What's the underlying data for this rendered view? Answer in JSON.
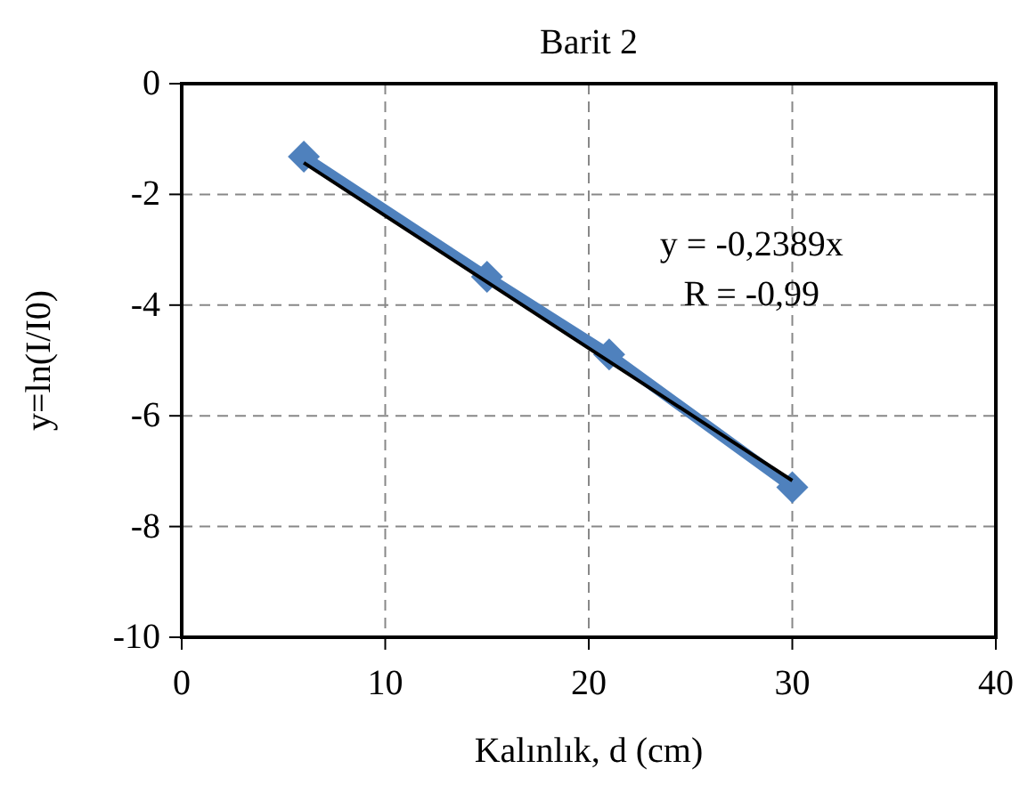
{
  "chart_data": {
    "type": "line",
    "title": "Barit 2",
    "xlabel": "Kalınlık, d (cm)",
    "ylabel": "y=ln(I/I0)",
    "xlim": [
      0,
      40
    ],
    "xticks": [
      0,
      10,
      20,
      30,
      40
    ],
    "ylim": [
      -10,
      0
    ],
    "yticks": [
      0,
      -2,
      -4,
      -6,
      -8,
      -10
    ],
    "grid": true,
    "marker": "diamond",
    "line_style": "solid",
    "series": [
      {
        "color": "#4f81bd",
        "x": [
          6,
          15,
          21,
          30
        ],
        "values": [
          -1.32,
          -3.49,
          -4.89,
          -7.29
        ]
      },
      {
        "color": "#000000",
        "marker": "none",
        "x": [
          6,
          30
        ],
        "values": [
          -1.43,
          -7.17
        ]
      }
    ],
    "annotations": [
      "y = -0,2389x",
      "R = -0,99"
    ]
  }
}
